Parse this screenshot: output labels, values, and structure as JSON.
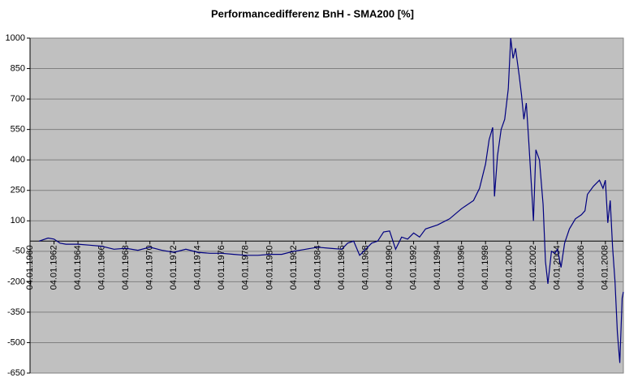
{
  "chart_data": {
    "type": "line",
    "title": "Performancedifferenz BnH - SMA200 [%]",
    "x": [
      1960.75,
      1961.5,
      1962,
      1962.5,
      1963,
      1964,
      1965,
      1966,
      1967,
      1968,
      1969,
      1970,
      1971,
      1972,
      1973,
      1974,
      1975,
      1976,
      1977,
      1978,
      1979,
      1980,
      1981,
      1982,
      1983,
      1984,
      1985,
      1986,
      1986.5,
      1987,
      1987.5,
      1988,
      1988.5,
      1989,
      1989.5,
      1990,
      1990.5,
      1991,
      1991.5,
      1992,
      1992.5,
      1993,
      1994,
      1995,
      1996,
      1997,
      1997.5,
      1998,
      1998.3,
      1998.6,
      1998.75,
      1999,
      1999.3,
      1999.6,
      1999.9,
      2000.1,
      2000.3,
      2000.5,
      2000.8,
      2001,
      2001.2,
      2001.4,
      2001.6,
      2001.9,
      2002,
      2002.2,
      2002.5,
      2002.8,
      2003,
      2003.2,
      2003.5,
      2003.8,
      2004,
      2004.3,
      2004.6,
      2005,
      2005.5,
      2006,
      2006.3,
      2006.5,
      2007,
      2007.5,
      2007.8,
      2008,
      2008.2,
      2008.4,
      2008.6,
      2008.8,
      2009,
      2009.2,
      2009.4,
      2009.5
    ],
    "series": [
      {
        "name": "Performancedifferenz",
        "color": "#000080",
        "values": [
          0,
          15,
          10,
          -10,
          -15,
          -15,
          -20,
          -25,
          -40,
          -35,
          -45,
          -30,
          -45,
          -55,
          -40,
          -55,
          -60,
          -60,
          -65,
          -70,
          -70,
          -65,
          -65,
          -50,
          -40,
          -30,
          -35,
          -40,
          -10,
          0,
          -70,
          -40,
          -10,
          0,
          45,
          50,
          -40,
          20,
          10,
          40,
          20,
          60,
          80,
          110,
          160,
          200,
          260,
          380,
          500,
          560,
          220,
          420,
          550,
          600,
          750,
          1000,
          900,
          950,
          820,
          720,
          600,
          680,
          500,
          200,
          100,
          450,
          400,
          180,
          -100,
          -210,
          -50,
          -60,
          -40,
          -130,
          -10,
          60,
          110,
          130,
          150,
          230,
          270,
          300,
          260,
          300,
          90,
          200,
          -30,
          -200,
          -450,
          -600,
          -280,
          -250
        ]
      }
    ],
    "xlim": [
      1960,
      2009.5
    ],
    "xticks": [
      {
        "value": 1960,
        "label": "04.01.1960"
      },
      {
        "value": 1962,
        "label": "04.01.1962"
      },
      {
        "value": 1964,
        "label": "04.01.1964"
      },
      {
        "value": 1966,
        "label": "04.01.1966"
      },
      {
        "value": 1968,
        "label": "04.01.1968"
      },
      {
        "value": 1970,
        "label": "04.01.1970"
      },
      {
        "value": 1972,
        "label": "04.01.1972"
      },
      {
        "value": 1974,
        "label": "04.01.1974"
      },
      {
        "value": 1976,
        "label": "04.01.1976"
      },
      {
        "value": 1978,
        "label": "04.01.1978"
      },
      {
        "value": 1980,
        "label": "04.01.1980"
      },
      {
        "value": 1982,
        "label": "04.01.1982"
      },
      {
        "value": 1984,
        "label": "04.01.1984"
      },
      {
        "value": 1986,
        "label": "04.01.1986"
      },
      {
        "value": 1988,
        "label": "04.01.1988"
      },
      {
        "value": 1990,
        "label": "04.01.1990"
      },
      {
        "value": 1992,
        "label": "04.01.1992"
      },
      {
        "value": 1994,
        "label": "04.01.1994"
      },
      {
        "value": 1996,
        "label": "04.01.1996"
      },
      {
        "value": 1998,
        "label": "04.01.1998"
      },
      {
        "value": 2000,
        "label": "04.01.2000"
      },
      {
        "value": 2002,
        "label": "04.01.2002"
      },
      {
        "value": 2004,
        "label": "04.01.2004"
      },
      {
        "value": 2006,
        "label": "04.01.2006"
      },
      {
        "value": 2008,
        "label": "04.01.2008"
      }
    ],
    "ylim": [
      -650,
      1000
    ],
    "yticks": [
      1000,
      850,
      700,
      550,
      400,
      250,
      100,
      -50,
      -200,
      -350,
      -500,
      -650
    ],
    "grid": true
  }
}
